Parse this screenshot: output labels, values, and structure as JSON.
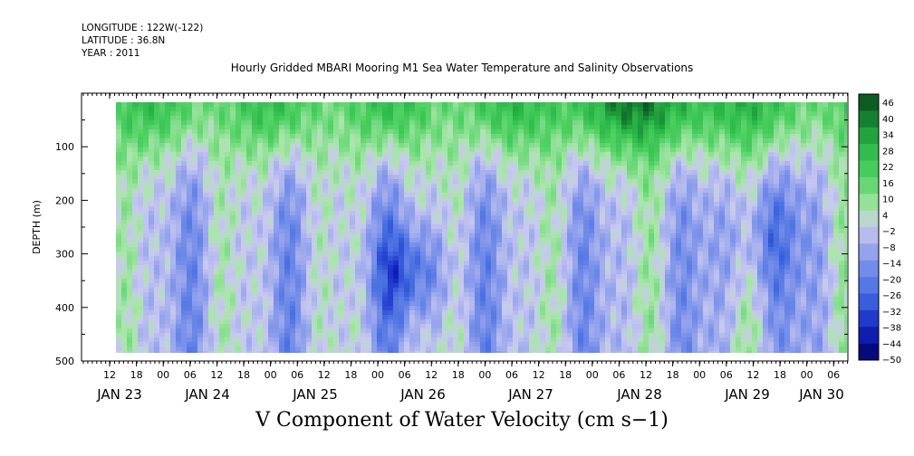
{
  "header": {
    "longitude": "LONGITUDE : 122W(-122)",
    "latitude": "LATITUDE : 36.8N",
    "year": "YEAR : 2011"
  },
  "chart_data": {
    "type": "heatmap",
    "title": "Hourly Gridded MBARI Mooring M1 Sea Water Temperature and Salinity Observations",
    "variable_label": "V Component of Water Velocity (cm s−1)",
    "ylabel": "DEPTH (m)",
    "ylim": [
      500,
      0
    ],
    "y_ticks": [
      100,
      200,
      300,
      400,
      500
    ],
    "data_depth_range": [
      20,
      485
    ],
    "x_hour_ticks": [
      "12",
      "18",
      "00",
      "06",
      "12",
      "18",
      "00",
      "06",
      "12",
      "18",
      "00",
      "06",
      "12",
      "18",
      "00",
      "06",
      "12",
      "18",
      "00",
      "06",
      "12",
      "18",
      "00",
      "06",
      "12",
      "18",
      "00",
      "06"
    ],
    "x_date_labels": [
      "JAN 23",
      "JAN 24",
      "JAN 25",
      "JAN 26",
      "JAN 27",
      "JAN 28",
      "JAN 29",
      "JAN 30"
    ],
    "colorbar": {
      "levels": [
        46,
        40,
        34,
        28,
        22,
        16,
        10,
        4,
        -2,
        -8,
        -14,
        -20,
        -26,
        -32,
        -38,
        -44,
        -50
      ],
      "colormap": "blue (negative) to green (positive)",
      "color_negative_max": "#000066",
      "color_zero": "#c8c8f0",
      "color_positive_max": "#0a4a1e"
    },
    "pattern_summary": "Near-surface layer (0-150 m) mostly positive (green, strongest around JAN 27-28 at ~30-40 cm/s); deeper layers alternate between negative (blue, down to about -30 cm/s near JAN 26 at 300-400 m) and weakly positive bands."
  }
}
